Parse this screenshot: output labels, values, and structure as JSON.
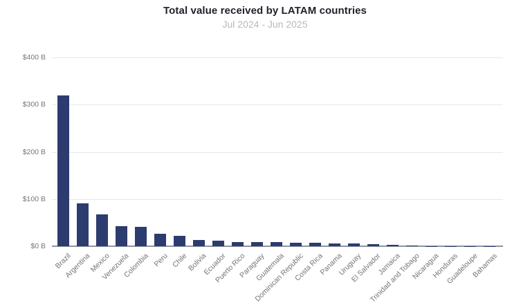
{
  "chart_data": {
    "type": "bar",
    "title": "Total value received by LATAM countries",
    "subtitle": "Jul 2024 - Jun 2025",
    "xlabel": "",
    "ylabel": "",
    "ylim": [
      0,
      400
    ],
    "ytick_labels": [
      "$0 B",
      "$100 B",
      "$200 B",
      "$300 B",
      "$400 B"
    ],
    "ytick_values": [
      0,
      100,
      200,
      300,
      400
    ],
    "grid": true,
    "legend": false,
    "categories": [
      "Brazil",
      "Argentina",
      "Mexico",
      "Venezuela",
      "Colombia",
      "Peru",
      "Chile",
      "Bolivia",
      "Ecuador",
      "Puerto Rico",
      "Paraguay",
      "Guatemala",
      "Dominican Republic",
      "Costa Rica",
      "Panama",
      "Uruguay",
      "El Salvador",
      "Jamaica",
      "Trinidad and Tobago",
      "Nicaragua",
      "Honduras",
      "Guadeloupe",
      "Bahamas"
    ],
    "values": [
      320,
      91,
      68,
      43,
      41.5,
      26,
      22,
      13,
      12,
      9.5,
      8.6,
      8.5,
      8,
      7.5,
      6.2,
      5.5,
      5,
      3.5,
      1.2,
      0.6,
      0.4,
      0.3,
      0.2
    ],
    "value_unit": "USD billions"
  },
  "colors": {
    "bar": "#2d3c6e",
    "title": "#20222b",
    "subtitle": "#b8b8b8",
    "tick_label": "#757575",
    "gridline": "#e8e8e8",
    "axis_line": "#8d93a0",
    "background": "#ffffff"
  }
}
